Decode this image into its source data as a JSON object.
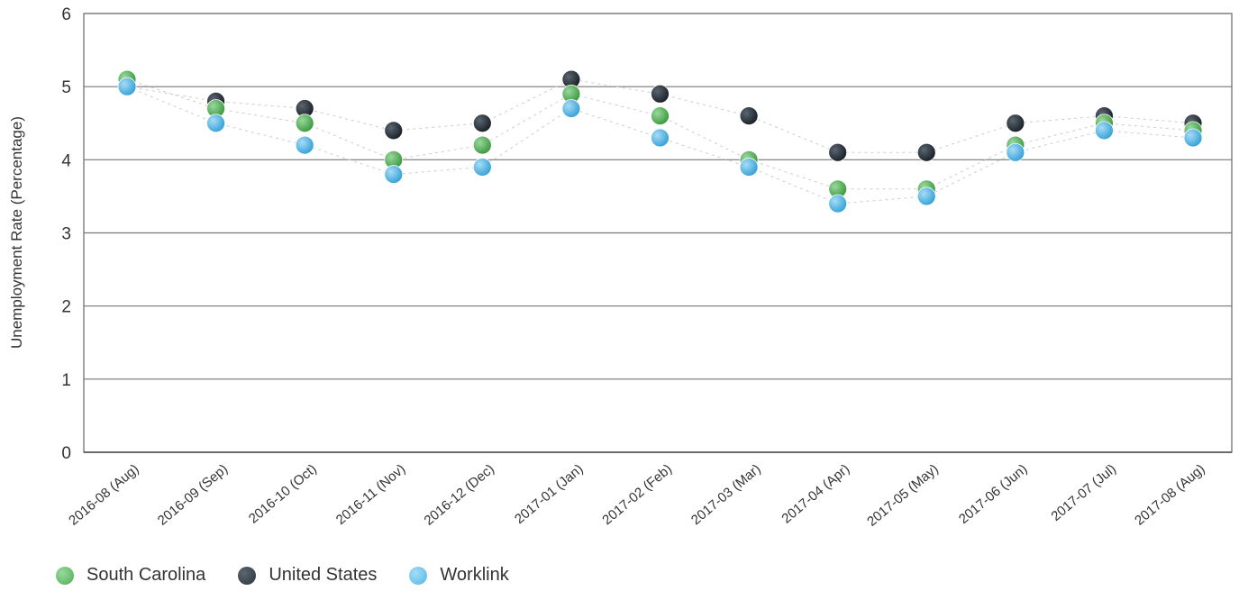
{
  "chart_data": {
    "type": "scatter",
    "title": "",
    "xlabel": "",
    "ylabel": "Unemployment Rate (Percentage)",
    "ylim": [
      0,
      6
    ],
    "yticks": [
      "0",
      "1",
      "2",
      "3",
      "4",
      "5",
      "6"
    ],
    "grid": true,
    "legend_position": "bottom-left",
    "categories": [
      "2016-08 (Aug)",
      "2016-09 (Sep)",
      "2016-10 (Oct)",
      "2016-11 (Nov)",
      "2016-12 (Dec)",
      "2017-01 (Jan)",
      "2017-02 (Feb)",
      "2017-03 (Mar)",
      "2017-04 (Apr)",
      "2017-05 (May)",
      "2017-06 (Jun)",
      "2017-07 (Jul)",
      "2017-08 (Aug)"
    ],
    "series": [
      {
        "name": "South Carolina",
        "color": "#4caf50",
        "values": [
          5.1,
          4.7,
          4.5,
          4.0,
          4.2,
          4.9,
          4.6,
          4.0,
          3.6,
          3.6,
          4.2,
          4.5,
          4.4
        ]
      },
      {
        "name": "United States",
        "color": "#2b333b",
        "values": [
          5.0,
          4.8,
          4.7,
          4.4,
          4.5,
          5.1,
          4.9,
          4.6,
          4.1,
          4.1,
          4.5,
          4.6,
          4.5
        ]
      },
      {
        "name": "Worklink",
        "color": "#4fb6e8",
        "values": [
          5.0,
          4.5,
          4.2,
          3.8,
          3.9,
          4.7,
          4.3,
          3.9,
          3.4,
          3.5,
          4.1,
          4.4,
          4.3
        ]
      }
    ]
  }
}
